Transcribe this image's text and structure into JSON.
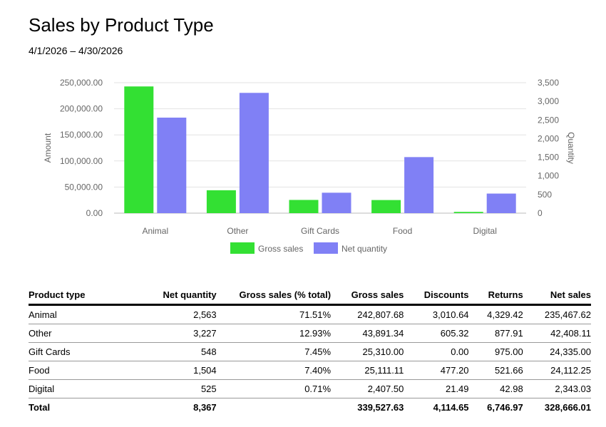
{
  "header": {
    "title": "Sales by Product Type",
    "date_range": "4/1/2026 – 4/30/2026"
  },
  "chart_data": {
    "type": "bar",
    "categories": [
      "Animal",
      "Other",
      "Gift Cards",
      "Food",
      "Digital"
    ],
    "series": [
      {
        "name": "Gross sales",
        "axis": "left",
        "color": "#33e033",
        "values": [
          242807.68,
          43891.34,
          25310.0,
          25111.11,
          2407.5
        ]
      },
      {
        "name": "Net quantity",
        "axis": "right",
        "color": "#8080f5",
        "values": [
          2563,
          3227,
          548,
          1504,
          525
        ]
      }
    ],
    "ylabel": "Amount",
    "y2label": "Quantity",
    "ylim": [
      0,
      250000
    ],
    "y2lim": [
      0,
      3500
    ],
    "yticks": [
      "0.00",
      "50,000.00",
      "100,000.00",
      "150,000.00",
      "200,000.00",
      "250,000.00"
    ],
    "y2ticks": [
      "0",
      "500",
      "1,000",
      "1,500",
      "2,000",
      "2,500",
      "3,000",
      "3,500"
    ],
    "grid": true,
    "legend": "bottom"
  },
  "table": {
    "headers": [
      "Product type",
      "Net quantity",
      "Gross sales (% total)",
      "Gross sales",
      "Discounts",
      "Returns",
      "Net sales"
    ],
    "rows": [
      [
        "Animal",
        "2,563",
        "71.51%",
        "242,807.68",
        "3,010.64",
        "4,329.42",
        "235,467.62"
      ],
      [
        "Other",
        "3,227",
        "12.93%",
        "43,891.34",
        "605.32",
        "877.91",
        "42,408.11"
      ],
      [
        "Gift Cards",
        "548",
        "7.45%",
        "25,310.00",
        "0.00",
        "975.00",
        "24,335.00"
      ],
      [
        "Food",
        "1,504",
        "7.40%",
        "25,111.11",
        "477.20",
        "521.66",
        "24,112.25"
      ],
      [
        "Digital",
        "525",
        "0.71%",
        "2,407.50",
        "21.49",
        "42.98",
        "2,343.03"
      ]
    ],
    "total": [
      "Total",
      "8,367",
      "",
      "339,527.63",
      "4,114.65",
      "6,746.97",
      "328,666.01"
    ]
  }
}
